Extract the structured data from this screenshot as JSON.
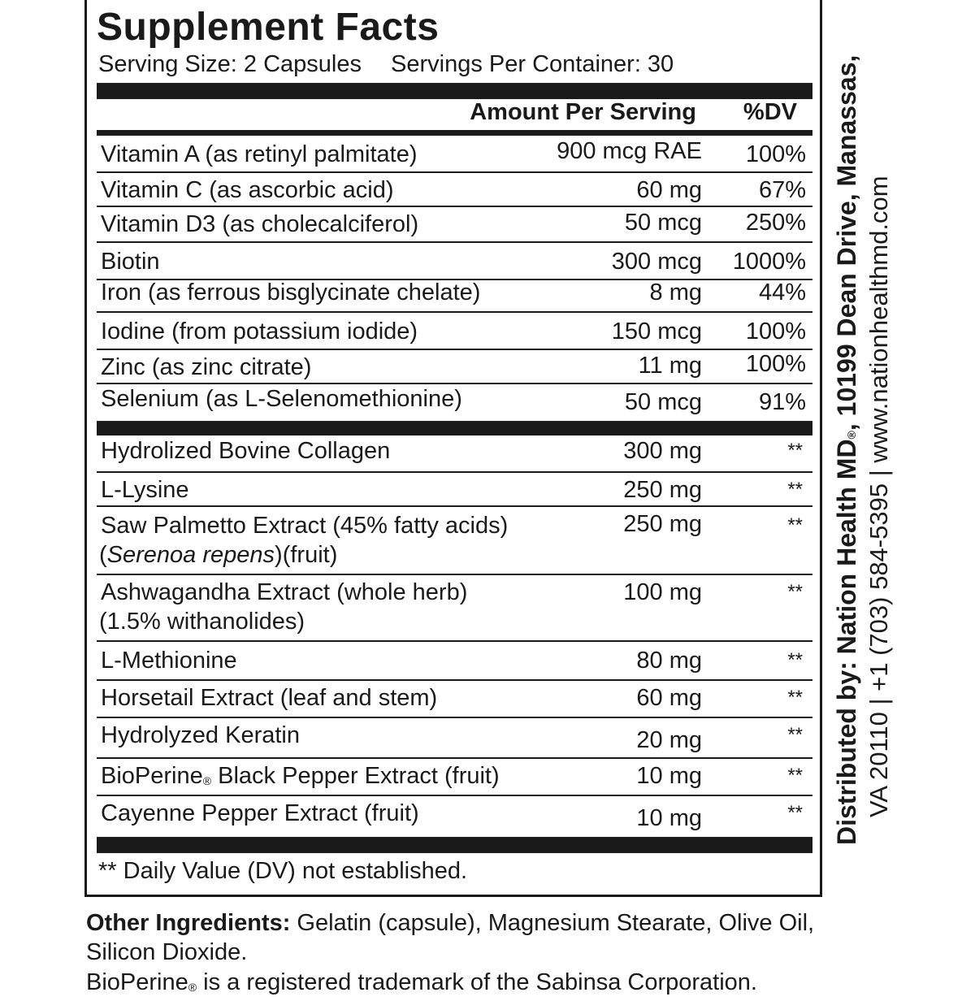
{
  "panel": {
    "title": "Supplement Facts",
    "serving_size": "Serving Size: 2 Capsules",
    "servings_per_container": "Servings Per Container: 30",
    "header_amount": "Amount Per Serving",
    "header_dv": "%DV",
    "vitamins": [
      {
        "name": "Vitamin A (as retinyl palmitate)",
        "amount": "900 mcg RAE",
        "dv": "100%"
      },
      {
        "name": "Vitamin C (as ascorbic acid)",
        "amount": "60 mg",
        "dv": "67%"
      },
      {
        "name": "Vitamin D3 (as cholecalciferol)",
        "amount": "50 mcg",
        "dv": "250%"
      },
      {
        "name": "Biotin",
        "amount": "300 mcg",
        "dv": "1000%"
      },
      {
        "name": "Iron (as ferrous bisglycinate chelate)",
        "amount": "8 mg",
        "dv": "44%"
      },
      {
        "name": "Iodine (from potassium iodide)",
        "amount": "150 mcg",
        "dv": "100%"
      },
      {
        "name": "Zinc (as zinc citrate)",
        "amount": "11 mg",
        "dv": "100%"
      },
      {
        "name": "Selenium (as L-Selenomethionine)",
        "amount": "50 mcg",
        "dv": "91%"
      }
    ],
    "others": [
      {
        "name": "Hydrolized Bovine Collagen",
        "amount": "300 mg",
        "dv": "**"
      },
      {
        "name": "L-Lysine",
        "amount": "250 mg",
        "dv": "**"
      },
      {
        "name": "Saw Palmetto Extract (45% fatty acids)",
        "name_line2_pre": "(",
        "name_line2_italic": "Serenoa repens",
        "name_line2_post": ")(fruit)",
        "amount": "250 mg",
        "dv": "**"
      },
      {
        "name": "Ashwagandha Extract (whole herb)",
        "name_line2": "(1.5% withanolides)",
        "amount": "100 mg",
        "dv": "**"
      },
      {
        "name": "L-Methionine",
        "amount": "80 mg",
        "dv": "**"
      },
      {
        "name": "Horsetail Extract (leaf and stem)",
        "amount": "60 mg",
        "dv": "**"
      },
      {
        "name": "Hydrolyzed Keratin",
        "amount": "20 mg",
        "dv": "**"
      },
      {
        "name_pre": "BioPerine",
        "reg": "®",
        "name_post": " Black Pepper Extract (fruit)",
        "amount": "10 mg",
        "dv": "**"
      },
      {
        "name": "Cayenne Pepper Extract (fruit)",
        "amount": "10 mg",
        "dv": "**"
      }
    ],
    "footnote": "** Daily Value (DV) not established."
  },
  "side": {
    "line1_pre": "Distributed by: Nation Health MD",
    "line1_reg": "®",
    "line1_post": ", 10199 Dean Drive, Manassas,",
    "line2": "VA 20110 | +1 (703) 584-5395 | www.nationhealthmd.com"
  },
  "other_ingredients": {
    "label": "Other Ingredients:",
    "text": " Gelatin (capsule), Magnesium Stearate, Olive Oil, Silicon Dioxide."
  },
  "trademark": {
    "pre": "BioPerine",
    "reg": "®",
    "post": " is a registered trademark of the Sabinsa Corporation."
  }
}
